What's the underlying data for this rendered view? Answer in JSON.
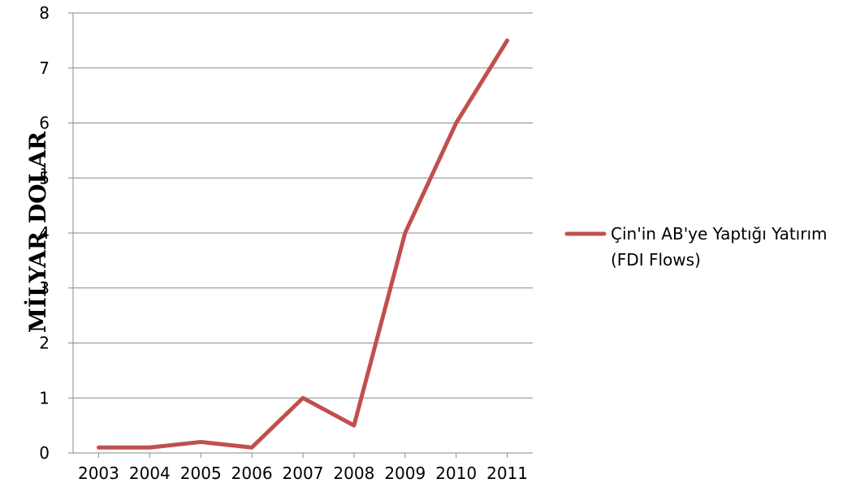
{
  "chart_data": {
    "type": "line",
    "title": "",
    "xlabel": "",
    "ylabel": "MİLYAR DOLAR",
    "categories": [
      "2003",
      "2004",
      "2005",
      "2006",
      "2007",
      "2008",
      "2009",
      "2010",
      "2011"
    ],
    "series": [
      {
        "name": "Çin'in AB'ye Yaptığı Yatırım (FDI Flows)",
        "legend_lines": [
          "Çin'in AB'ye Yaptığı Yatırım",
          "(FDI Flows)"
        ],
        "color": "#c0504d",
        "values": [
          0.1,
          0.1,
          0.2,
          0.1,
          1.0,
          0.5,
          4.0,
          6.0,
          7.5
        ]
      }
    ],
    "ylim": [
      0,
      8
    ],
    "yticks": [
      "0",
      "1",
      "2",
      "3",
      "4",
      "5",
      "6",
      "7",
      "8"
    ],
    "grid": true,
    "legend_position": "right"
  }
}
